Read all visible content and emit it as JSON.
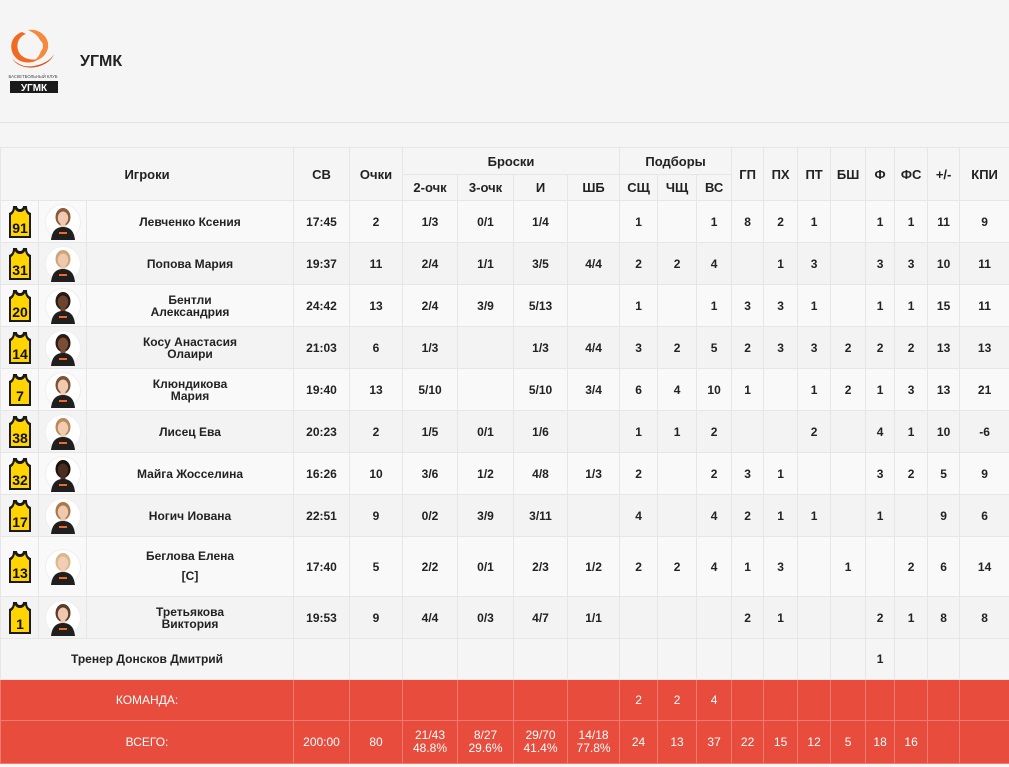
{
  "team": {
    "name": "УГМК",
    "logo_top_text": "БАСКЕТБОЛЬНЫЙ КЛУБ",
    "logo_bottom_text": "УГМК"
  },
  "headers": {
    "players": "Игроки",
    "min": "СВ",
    "pts": "Очки",
    "shots": "Броски",
    "two": "2-очк",
    "three": "3-очк",
    "fg": "И",
    "ft": "ШБ",
    "reb": "Подборы",
    "oreb": "СЩ",
    "dreb": "ЧЩ",
    "treb": "ВС",
    "ast": "ГП",
    "to": "ПХ",
    "stl": "ПТ",
    "blk": "БШ",
    "pf": "Ф",
    "fd": "ФС",
    "pm": "+/-",
    "eff": "КПИ"
  },
  "players": [
    {
      "number": "91",
      "name": "Левченко Ксения",
      "name2": "",
      "min": "17:45",
      "pts": "2",
      "two": "1/3",
      "three": "0/1",
      "fg": "1/4",
      "ft": "",
      "oreb": "1",
      "dreb": "",
      "treb": "1",
      "ast": "8",
      "to": "2",
      "stl": "1",
      "blk": "",
      "pf": "1",
      "fd": "1",
      "pm": "11",
      "eff": "9",
      "skin": "#f1c9b0",
      "hair": "#8a5a3a"
    },
    {
      "number": "31",
      "name": "Попова Мария",
      "name2": "",
      "min": "19:37",
      "pts": "11",
      "two": "2/4",
      "three": "1/1",
      "fg": "3/5",
      "ft": "4/4",
      "oreb": "2",
      "dreb": "2",
      "treb": "4",
      "ast": "",
      "to": "1",
      "stl": "3",
      "blk": "",
      "pf": "3",
      "fd": "3",
      "pm": "10",
      "eff": "11",
      "skin": "#f0c8ae",
      "hair": "#c9a77a"
    },
    {
      "number": "20",
      "name": "Бентли",
      "name2": "Александрия",
      "min": "24:42",
      "pts": "13",
      "two": "2/4",
      "three": "3/9",
      "fg": "5/13",
      "ft": "",
      "oreb": "1",
      "dreb": "",
      "treb": "1",
      "ast": "3",
      "to": "3",
      "stl": "1",
      "blk": "",
      "pf": "1",
      "fd": "1",
      "pm": "15",
      "eff": "11",
      "skin": "#6b4430",
      "hair": "#2a1a12"
    },
    {
      "number": "14",
      "name": "Косу Анастасия",
      "name2": "Олаири",
      "min": "21:03",
      "pts": "6",
      "two": "1/3",
      "three": "",
      "fg": "1/3",
      "ft": "4/4",
      "oreb": "3",
      "dreb": "2",
      "treb": "5",
      "ast": "2",
      "to": "3",
      "stl": "3",
      "blk": "2",
      "pf": "2",
      "fd": "2",
      "pm": "13",
      "eff": "13",
      "skin": "#7a4d34",
      "hair": "#2b1b12"
    },
    {
      "number": "7",
      "name": "Клюндикова",
      "name2": "Мария",
      "min": "19:40",
      "pts": "13",
      "two": "5/10",
      "three": "",
      "fg": "5/10",
      "ft": "3/4",
      "oreb": "6",
      "dreb": "4",
      "treb": "10",
      "ast": "1",
      "to": "",
      "stl": "1",
      "blk": "2",
      "pf": "1",
      "fd": "3",
      "pm": "13",
      "eff": "21",
      "skin": "#f0c9b0",
      "hair": "#7a5236"
    },
    {
      "number": "38",
      "name": "Лисец Ева",
      "name2": "",
      "min": "20:23",
      "pts": "2",
      "two": "1/5",
      "three": "0/1",
      "fg": "1/6",
      "ft": "",
      "oreb": "1",
      "dreb": "1",
      "treb": "2",
      "ast": "",
      "to": "",
      "stl": "2",
      "blk": "",
      "pf": "4",
      "fd": "1",
      "pm": "10",
      "eff": "-6",
      "skin": "#f2cbb2",
      "hair": "#b88b5a"
    },
    {
      "number": "32",
      "name": "Майга Жосселина",
      "name2": "",
      "min": "16:26",
      "pts": "10",
      "two": "3/6",
      "three": "1/2",
      "fg": "4/8",
      "ft": "1/3",
      "oreb": "2",
      "dreb": "",
      "treb": "2",
      "ast": "3",
      "to": "1",
      "stl": "",
      "blk": "",
      "pf": "3",
      "fd": "2",
      "pm": "5",
      "eff": "9",
      "skin": "#4a2e20",
      "hair": "#1c120c"
    },
    {
      "number": "17",
      "name": "Ногич Иована",
      "name2": "",
      "min": "22:51",
      "pts": "9",
      "two": "0/2",
      "three": "3/9",
      "fg": "3/11",
      "ft": "",
      "oreb": "4",
      "dreb": "",
      "treb": "4",
      "ast": "2",
      "to": "1",
      "stl": "1",
      "blk": "",
      "pf": "1",
      "fd": "",
      "pm": "9",
      "eff": "6",
      "skin": "#f0c8ae",
      "hair": "#a8794d"
    },
    {
      "number": "13",
      "name": "Беглова Елена",
      "name2": "",
      "captain": "[C]",
      "min": "17:40",
      "pts": "5",
      "two": "2/2",
      "three": "0/1",
      "fg": "2/3",
      "ft": "1/2",
      "oreb": "2",
      "dreb": "2",
      "treb": "4",
      "ast": "1",
      "to": "3",
      "stl": "",
      "blk": "1",
      "pf": "",
      "fd": "2",
      "pm": "6",
      "eff": "14",
      "skin": "#f3cdb4",
      "hair": "#d8b98a"
    },
    {
      "number": "1",
      "name": "Третьякова",
      "name2": "Виктория",
      "min": "19:53",
      "pts": "9",
      "two": "4/4",
      "three": "0/3",
      "fg": "4/7",
      "ft": "1/1",
      "oreb": "",
      "dreb": "",
      "treb": "",
      "ast": "2",
      "to": "1",
      "stl": "",
      "blk": "",
      "pf": "2",
      "fd": "1",
      "pm": "8",
      "eff": "8",
      "skin": "#efc7ad",
      "hair": "#5a3a28"
    }
  ],
  "coach": {
    "label": "Тренер Донсков Дмитрий",
    "pf": "1"
  },
  "team_row": {
    "label": "КОМАНДА:",
    "oreb": "2",
    "dreb": "2",
    "treb": "4"
  },
  "total_row": {
    "label": "ВСЕГО:",
    "min": "200:00",
    "pts": "80",
    "two": "21/43",
    "two_pct": "48.8%",
    "three": "8/27",
    "three_pct": "29.6%",
    "fg": "29/70",
    "fg_pct": "41.4%",
    "ft": "14/18",
    "ft_pct": "77.8%",
    "oreb": "24",
    "dreb": "13",
    "treb": "37",
    "ast": "22",
    "to": "15",
    "stl": "12",
    "blk": "5",
    "pf": "18",
    "fd": "16",
    "pm": "",
    "eff": ""
  },
  "colors": {
    "accent": "#e84c3d",
    "jersey": "#ffd400",
    "jersey_dark": "#1a1a1a",
    "uniform": "#1f1f1f",
    "logo_orange": "#f26a21"
  }
}
